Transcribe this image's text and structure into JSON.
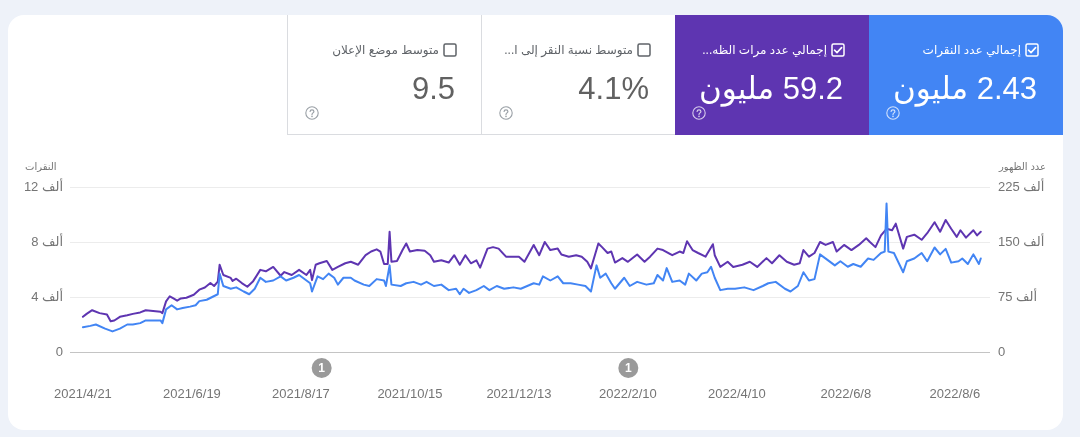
{
  "chart_data": [
    {
      "type": "other",
      "categories": [
        "متوسط موضع الإعلان",
        "متوسط نسبة النقر إلى ا...",
        "إجمالي عدد مرات الظه...",
        "إجمالي عدد النقرات"
      ],
      "value_labels": [
        "9.5",
        "4.1%",
        "59.2 مليون",
        "2.43 مليون"
      ],
      "colors": [
        "#ffffff",
        "#ffffff",
        "#5e35b1",
        "#4285f4"
      ]
    },
    {
      "type": "line",
      "ylabel": "النقرات",
      "y2label": "عدد الظهور",
      "grid": "y",
      "xlim": [
        "2021-04-14",
        "2022-08-25"
      ],
      "xticks": [
        {
          "value": "2021-04-21",
          "label": "2021/4/21"
        },
        {
          "value": "2021-06-19",
          "label": "2021/6/19"
        },
        {
          "value": "2021-08-17",
          "label": "2021/8/17"
        },
        {
          "value": "2021-10-15",
          "label": "2021/10/15"
        },
        {
          "value": "2021-12-13",
          "label": "2021/12/13"
        },
        {
          "value": "2022-02-10",
          "label": "2022/2/10"
        },
        {
          "value": "2022-04-10",
          "label": "2022/4/10"
        },
        {
          "value": "2022-06-08",
          "label": "2022/6/8"
        },
        {
          "value": "2022-08-06",
          "label": "2022/8/6"
        }
      ],
      "ylim": [
        0,
        12
      ],
      "yticks": [
        0,
        {
          "value": 4,
          "label": "4 ألف"
        },
        {
          "value": 8,
          "label": "8 ألف"
        },
        {
          "value": 12,
          "label": "12 ألف"
        }
      ],
      "y2lim": [
        0,
        225
      ],
      "y2ticks": [
        0,
        {
          "value": 75,
          "label": "75 ألف"
        },
        {
          "value": 150,
          "label": "150 ألف"
        },
        {
          "value": 225,
          "label": "225 ألف"
        }
      ],
      "annotations": [
        "1",
        "1"
      ],
      "series": [
        {
          "color": "#4285f4",
          "x": [
            "2021-04-21",
            "2021-04-25",
            "2021-04-28",
            "2021-05-03",
            "2021-05-07",
            "2021-05-11",
            "2021-05-15",
            "2021-05-18",
            "2021-05-22",
            "2021-05-25",
            "2021-05-29",
            "2021-06-02",
            "2021-06-03",
            "2021-06-05",
            "2021-06-08",
            "2021-06-11",
            "2021-06-14",
            "2021-06-18",
            "2021-06-21",
            "2021-06-23",
            "2021-06-27",
            "2021-06-30",
            "2021-07-03",
            "2021-07-04",
            "2021-07-06",
            "2021-07-10",
            "2021-07-13",
            "2021-07-17",
            "2021-07-20",
            "2021-07-23",
            "2021-07-26",
            "2021-07-29",
            "2021-08-02",
            "2021-08-06",
            "2021-08-09",
            "2021-08-13",
            "2021-08-16",
            "2021-08-20",
            "2021-08-22",
            "2021-08-23",
            "2021-08-26",
            "2021-08-29",
            "2021-09-01",
            "2021-09-04",
            "2021-09-06",
            "2021-09-09",
            "2021-09-13",
            "2021-09-15",
            "2021-09-20",
            "2021-09-23",
            "2021-09-27",
            "2021-10-01",
            "2021-10-02",
            "2021-10-04",
            "2021-10-05",
            "2021-10-10",
            "2021-10-13",
            "2021-10-17",
            "2021-10-21",
            "2021-10-24",
            "2021-10-28",
            "2021-11-01",
            "2021-11-05",
            "2021-11-09",
            "2021-11-11",
            "2021-11-13",
            "2021-11-16",
            "2021-11-20",
            "2021-11-24",
            "2021-11-27",
            "2021-12-01",
            "2021-12-05",
            "2021-12-10",
            "2021-12-14",
            "2021-12-21",
            "2021-12-24",
            "2021-12-26",
            "2021-12-30",
            "2022-01-03",
            "2022-01-06",
            "2022-01-10",
            "2022-01-14",
            "2022-01-18",
            "2022-01-21",
            "2022-01-24",
            "2022-01-26",
            "2022-01-29",
            "2022-02-01",
            "2022-02-03",
            "2022-02-08",
            "2022-02-11",
            "2022-02-15",
            "2022-02-20",
            "2022-02-24",
            "2022-02-26",
            "2022-03-01",
            "2022-03-03",
            "2022-03-06",
            "2022-03-10",
            "2022-03-13",
            "2022-03-15",
            "2022-03-19",
            "2022-03-22",
            "2022-03-25",
            "2022-03-27",
            "2022-03-29",
            "2022-04-01",
            "2022-04-05",
            "2022-04-09",
            "2022-04-14",
            "2022-04-19",
            "2022-04-24",
            "2022-04-27",
            "2022-05-01",
            "2022-05-06",
            "2022-05-09",
            "2022-05-13",
            "2022-05-16",
            "2022-05-19",
            "2022-05-22",
            "2022-05-25",
            "2022-05-29",
            "2022-06-02",
            "2022-06-05",
            "2022-06-09",
            "2022-06-12",
            "2022-06-16",
            "2022-06-20",
            "2022-06-23",
            "2022-06-27",
            "2022-06-29",
            "2022-06-30",
            "2022-07-01",
            "2022-07-04",
            "2022-07-09",
            "2022-07-11",
            "2022-07-15",
            "2022-07-19",
            "2022-07-22",
            "2022-07-26",
            "2022-07-29",
            "2022-08-01",
            "2022-08-04",
            "2022-08-08",
            "2022-08-10",
            "2022-08-13",
            "2022-08-16",
            "2022-08-19",
            "2022-08-20"
          ],
          "values": [
            1.8,
            1.9,
            2.0,
            1.7,
            1.5,
            1.7,
            2.0,
            2.0,
            2.1,
            2.3,
            2.3,
            2.3,
            2.1,
            3.1,
            3.4,
            3.1,
            3.2,
            3.3,
            3.4,
            3.7,
            3.8,
            4.0,
            4.2,
            5.7,
            4.8,
            4.6,
            4.7,
            4.4,
            4.2,
            4.6,
            5.4,
            5.1,
            5.2,
            5.5,
            5.2,
            5.4,
            5.6,
            5.2,
            5.0,
            4.4,
            5.5,
            5.3,
            5.7,
            5.4,
            4.9,
            5.4,
            5.4,
            5.2,
            4.9,
            4.8,
            5.3,
            5.2,
            4.8,
            6.3,
            4.9,
            4.8,
            5.0,
            5.1,
            4.9,
            5.1,
            4.8,
            4.9,
            4.5,
            4.6,
            4.2,
            4.6,
            4.3,
            4.5,
            4.8,
            4.5,
            4.8,
            4.6,
            4.7,
            4.6,
            5.0,
            4.9,
            5.5,
            5.2,
            5.5,
            5.0,
            5.0,
            4.9,
            4.8,
            4.4,
            6.3,
            5.4,
            5.7,
            5.0,
            4.6,
            5.4,
            4.8,
            5.1,
            4.9,
            5.0,
            5.6,
            5.2,
            6.1,
            5.1,
            5.2,
            4.9,
            5.7,
            5.2,
            5.7,
            5.8,
            6.2,
            5.4,
            4.5,
            4.6,
            4.6,
            4.7,
            4.5,
            4.8,
            5.0,
            5.1,
            4.6,
            4.4,
            4.8,
            5.8,
            5.2,
            5.3,
            7.1,
            6.7,
            6.3,
            6.6,
            6.2,
            6.4,
            6.2,
            6.8,
            6.7,
            7.2,
            7.3,
            10.8,
            7.3,
            7.2,
            5.8,
            6.6,
            6.8,
            7.2,
            6.6,
            7.6,
            7.1,
            7.5,
            6.5,
            6.6,
            6.8,
            6.4,
            7.1,
            6.4,
            6.8
          ]
        },
        {
          "color": "#5e35b1",
          "axis": "y2",
          "x": [
            "2021-04-21",
            "2021-04-23",
            "2021-04-26",
            "2021-04-30",
            "2021-05-04",
            "2021-05-06",
            "2021-05-08",
            "2021-05-11",
            "2021-05-15",
            "2021-05-18",
            "2021-05-22",
            "2021-05-25",
            "2021-05-29",
            "2021-06-02",
            "2021-06-03",
            "2021-06-05",
            "2021-06-07",
            "2021-06-09",
            "2021-06-11",
            "2021-06-13",
            "2021-06-16",
            "2021-06-20",
            "2021-06-23",
            "2021-06-26",
            "2021-06-29",
            "2021-07-01",
            "2021-07-03",
            "2021-07-04",
            "2021-07-06",
            "2021-07-10",
            "2021-07-11",
            "2021-07-13",
            "2021-07-16",
            "2021-07-19",
            "2021-07-22",
            "2021-07-26",
            "2021-07-29",
            "2021-08-02",
            "2021-08-06",
            "2021-08-08",
            "2021-08-12",
            "2021-08-16",
            "2021-08-20",
            "2021-08-22",
            "2021-08-23",
            "2021-08-25",
            "2021-08-27",
            "2021-08-31",
            "2021-09-03",
            "2021-09-06",
            "2021-09-10",
            "2021-09-13",
            "2021-09-17",
            "2021-09-21",
            "2021-09-24",
            "2021-09-27",
            "2021-09-29",
            "2021-10-01",
            "2021-10-03",
            "2021-10-04",
            "2021-10-05",
            "2021-10-08",
            "2021-10-11",
            "2021-10-13",
            "2021-10-15",
            "2021-10-19",
            "2021-10-23",
            "2021-10-26",
            "2021-10-28",
            "2021-11-01",
            "2021-11-05",
            "2021-11-08",
            "2021-11-11",
            "2021-11-14",
            "2021-11-17",
            "2021-11-20",
            "2021-11-22",
            "2021-11-26",
            "2021-11-29",
            "2021-12-02",
            "2021-12-06",
            "2021-12-09",
            "2021-12-13",
            "2021-12-16",
            "2021-12-21",
            "2021-12-24",
            "2021-12-27",
            "2021-12-30",
            "2022-01-03",
            "2022-01-05",
            "2022-01-09",
            "2022-01-13",
            "2022-01-16",
            "2022-01-19",
            "2022-01-21",
            "2022-01-25",
            "2022-01-27",
            "2022-01-30",
            "2022-02-01",
            "2022-02-03",
            "2022-02-07",
            "2022-02-10",
            "2022-02-15",
            "2022-02-19",
            "2022-02-22",
            "2022-02-26",
            "2022-03-01",
            "2022-03-06",
            "2022-03-10",
            "2022-03-12",
            "2022-03-14",
            "2022-03-17",
            "2022-03-20",
            "2022-03-24",
            "2022-03-28",
            "2022-03-29",
            "2022-04-01",
            "2022-04-05",
            "2022-04-08",
            "2022-04-13",
            "2022-04-17",
            "2022-04-21",
            "2022-04-26",
            "2022-04-29",
            "2022-05-03",
            "2022-05-07",
            "2022-05-11",
            "2022-05-14",
            "2022-05-16",
            "2022-05-19",
            "2022-05-22",
            "2022-05-25",
            "2022-05-28",
            "2022-06-01",
            "2022-06-03",
            "2022-06-07",
            "2022-06-11",
            "2022-06-15",
            "2022-06-19",
            "2022-06-21",
            "2022-06-24",
            "2022-06-27",
            "2022-06-30",
            "2022-07-03",
            "2022-07-05",
            "2022-07-09",
            "2022-07-11",
            "2022-07-15",
            "2022-07-19",
            "2022-07-22",
            "2022-07-26",
            "2022-07-29",
            "2022-08-01",
            "2022-08-04",
            "2022-08-07",
            "2022-08-09",
            "2022-08-12",
            "2022-08-16",
            "2022-08-18",
            "2022-08-20"
          ],
          "values": [
            48,
            52,
            57,
            53,
            51,
            42,
            43,
            48,
            50,
            52,
            54,
            57,
            56,
            55,
            53,
            69,
            76,
            73,
            70,
            73,
            74,
            78,
            85,
            88,
            94,
            90,
            96,
            119,
            105,
            101,
            97,
            100,
            94,
            89,
            96,
            112,
            110,
            116,
            104,
            109,
            105,
            112,
            105,
            112,
            98,
            119,
            121,
            124,
            112,
            116,
            121,
            123,
            119,
            132,
            137,
            140,
            137,
            120,
            120,
            164,
            123,
            124,
            139,
            148,
            137,
            139,
            138,
            132,
            123,
            125,
            122,
            132,
            119,
            132,
            121,
            125,
            115,
            141,
            143,
            141,
            130,
            130,
            130,
            123,
            146,
            132,
            150,
            139,
            141,
            133,
            130,
            132,
            130,
            123,
            114,
            148,
            143,
            135,
            137,
            122,
            128,
            123,
            133,
            123,
            130,
            141,
            139,
            132,
            137,
            135,
            151,
            139,
            135,
            130,
            147,
            132,
            116,
            123,
            116,
            119,
            123,
            116,
            128,
            121,
            132,
            123,
            119,
            121,
            139,
            130,
            135,
            150,
            146,
            150,
            137,
            146,
            139,
            146,
            155,
            150,
            143,
            159,
            168,
            166,
            175,
            141,
            157,
            160,
            153,
            162,
            177,
            164,
            180,
            168,
            157,
            166,
            156,
            166,
            159,
            164
          ]
        }
      ]
    }
  ]
}
